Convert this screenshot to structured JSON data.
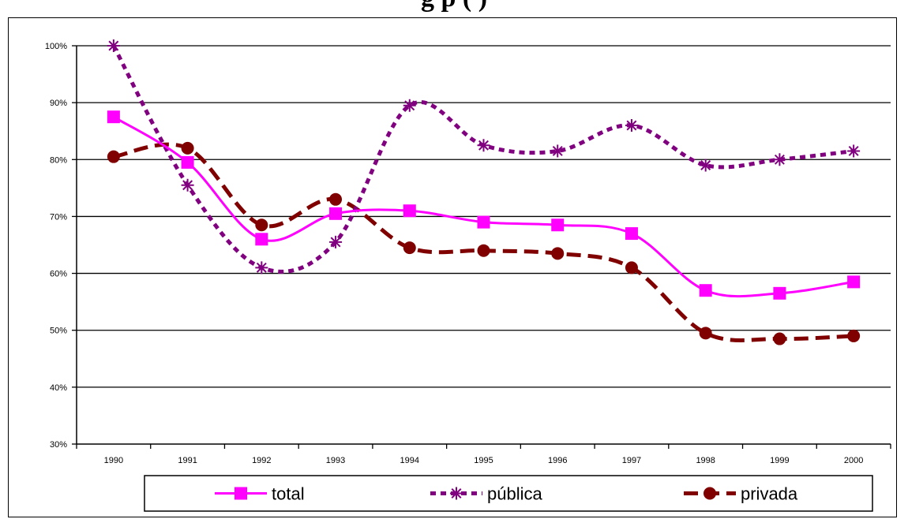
{
  "chart_data": {
    "type": "line",
    "title": "g   p              (          )",
    "categories": [
      "1990",
      "1991",
      "1992",
      "1993",
      "1994",
      "1995",
      "1996",
      "1997",
      "1998",
      "1999",
      "2000"
    ],
    "y_tick_labels": [
      "30%",
      "40%",
      "50%",
      "60%",
      "70%",
      "80%",
      "90%",
      "100%"
    ],
    "ylim": [
      30,
      100
    ],
    "y_unit": "%",
    "grid": true,
    "legend_position": "bottom",
    "series": [
      {
        "name": "total",
        "color": "#ff00ff",
        "marker": "square",
        "line_style": "solid",
        "values": [
          87.5,
          79.5,
          66,
          70.5,
          71,
          69,
          68.5,
          67,
          57,
          56.5,
          58.5
        ]
      },
      {
        "name": "pública",
        "color": "#800080",
        "marker": "asterisk",
        "line_style": "dotted",
        "values": [
          100,
          75.5,
          61,
          65.5,
          89.5,
          82.5,
          81.5,
          86,
          79,
          80,
          81.5
        ]
      },
      {
        "name": "privada",
        "color": "#800000",
        "marker": "circle",
        "line_style": "dashed",
        "values": [
          80.5,
          82,
          68.5,
          73,
          64.5,
          64,
          63.5,
          61,
          49.5,
          48.5,
          49
        ]
      }
    ]
  }
}
